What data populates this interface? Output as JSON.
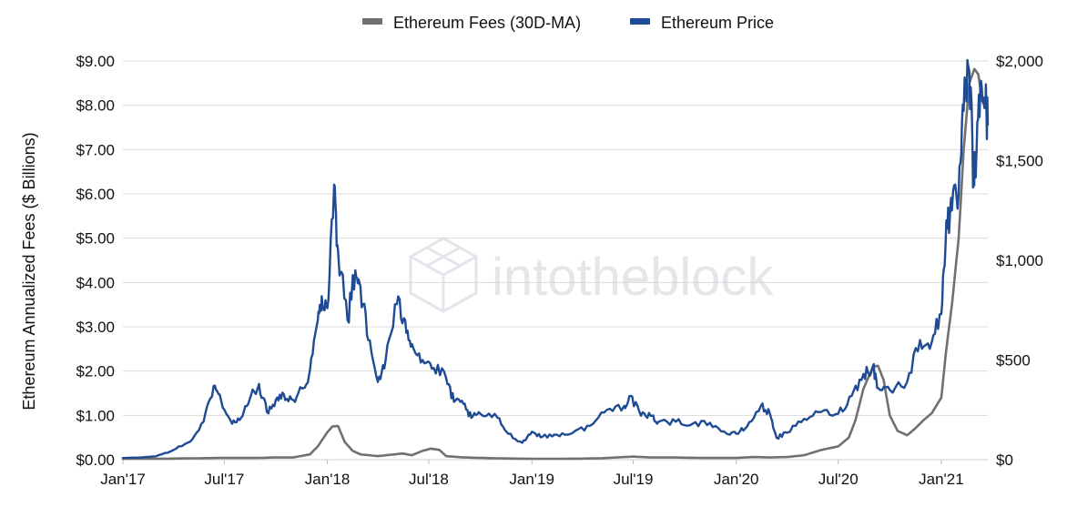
{
  "chart_data": {
    "type": "line",
    "title": "",
    "xlabel": "",
    "ylabel": "Ethereum Annualized Fees ($ Billions)",
    "y2label": "",
    "legend": {
      "placement": "top-center",
      "items": [
        {
          "label": "Ethereum Fees (30D-MA)",
          "color": "#707070"
        },
        {
          "label": "Ethereum Price",
          "color": "#1f4a94"
        }
      ]
    },
    "watermark": "intotheblock",
    "grid": "horizontal",
    "x_ticks": [
      "Jan'17",
      "Jul'17",
      "Jan'18",
      "Jul'18",
      "Jan'19",
      "Jul'19",
      "Jan'20",
      "Jul'20",
      "Jan'21"
    ],
    "y_left": {
      "ylim": [
        0,
        9
      ],
      "ticks": [
        {
          "value": 0,
          "label": "$0.00"
        },
        {
          "value": 1,
          "label": "$1.00"
        },
        {
          "value": 2,
          "label": "$2.00"
        },
        {
          "value": 3,
          "label": "$3.00"
        },
        {
          "value": 4,
          "label": "$4.00"
        },
        {
          "value": 5,
          "label": "$5.00"
        },
        {
          "value": 6,
          "label": "$6.00"
        },
        {
          "value": 7,
          "label": "$7.00"
        },
        {
          "value": 8,
          "label": "$8.00"
        },
        {
          "value": 9,
          "label": "$9.00"
        }
      ]
    },
    "y_right": {
      "ylim": [
        0,
        2000
      ],
      "ticks": [
        {
          "value": 0,
          "label": "$0"
        },
        {
          "value": 500,
          "label": "$500"
        },
        {
          "value": 1000,
          "label": "$1,000"
        },
        {
          "value": 1500,
          "label": "$1,500"
        },
        {
          "value": 2000,
          "label": "$2,000"
        }
      ]
    },
    "series": [
      {
        "name": "Ethereum Fees (30D-MA)",
        "axis": "left",
        "color": "#707070",
        "points": [
          [
            "2017-01-01",
            0.02
          ],
          [
            "2017-03-01",
            0.02
          ],
          [
            "2017-05-01",
            0.03
          ],
          [
            "2017-07-01",
            0.04
          ],
          [
            "2017-09-01",
            0.04
          ],
          [
            "2017-10-01",
            0.05
          ],
          [
            "2017-11-01",
            0.05
          ],
          [
            "2017-12-01",
            0.12
          ],
          [
            "2017-12-15",
            0.3
          ],
          [
            "2018-01-01",
            0.62
          ],
          [
            "2018-01-10",
            0.75
          ],
          [
            "2018-01-20",
            0.76
          ],
          [
            "2018-02-01",
            0.4
          ],
          [
            "2018-02-15",
            0.2
          ],
          [
            "2018-03-01",
            0.12
          ],
          [
            "2018-04-01",
            0.08
          ],
          [
            "2018-05-01",
            0.12
          ],
          [
            "2018-05-15",
            0.14
          ],
          [
            "2018-06-01",
            0.1
          ],
          [
            "2018-06-20",
            0.2
          ],
          [
            "2018-07-05",
            0.25
          ],
          [
            "2018-07-20",
            0.22
          ],
          [
            "2018-08-01",
            0.08
          ],
          [
            "2018-09-01",
            0.05
          ],
          [
            "2018-10-01",
            0.04
          ],
          [
            "2018-11-01",
            0.03
          ],
          [
            "2019-01-01",
            0.02
          ],
          [
            "2019-03-01",
            0.02
          ],
          [
            "2019-05-01",
            0.03
          ],
          [
            "2019-06-01",
            0.05
          ],
          [
            "2019-07-01",
            0.07
          ],
          [
            "2019-08-01",
            0.05
          ],
          [
            "2019-09-01",
            0.05
          ],
          [
            "2019-11-01",
            0.04
          ],
          [
            "2020-01-01",
            0.04
          ],
          [
            "2020-02-01",
            0.06
          ],
          [
            "2020-03-01",
            0.05
          ],
          [
            "2020-04-01",
            0.06
          ],
          [
            "2020-05-01",
            0.1
          ],
          [
            "2020-06-01",
            0.22
          ],
          [
            "2020-07-01",
            0.3
          ],
          [
            "2020-07-20",
            0.5
          ],
          [
            "2020-08-01",
            0.9
          ],
          [
            "2020-08-15",
            1.6
          ],
          [
            "2020-09-01",
            2.1
          ],
          [
            "2020-09-10",
            2.12
          ],
          [
            "2020-09-20",
            1.8
          ],
          [
            "2020-10-01",
            1.0
          ],
          [
            "2020-10-15",
            0.65
          ],
          [
            "2020-11-01",
            0.55
          ],
          [
            "2020-11-15",
            0.7
          ],
          [
            "2020-12-01",
            0.9
          ],
          [
            "2020-12-15",
            1.05
          ],
          [
            "2021-01-01",
            1.4
          ],
          [
            "2021-01-10",
            2.5
          ],
          [
            "2021-01-20",
            3.5
          ],
          [
            "2021-02-01",
            5.0
          ],
          [
            "2021-02-10",
            7.0
          ],
          [
            "2021-02-20",
            8.5
          ],
          [
            "2021-03-01",
            8.82
          ],
          [
            "2021-03-08",
            8.7
          ],
          [
            "2021-03-15",
            8.1
          ]
        ]
      },
      {
        "name": "Ethereum Price",
        "axis": "right",
        "color": "#1f4a94",
        "points": [
          [
            "2017-01-01",
            8
          ],
          [
            "2017-02-01",
            11
          ],
          [
            "2017-03-01",
            17
          ],
          [
            "2017-04-01",
            48
          ],
          [
            "2017-05-01",
            90
          ],
          [
            "2017-05-25",
            190
          ],
          [
            "2017-06-12",
            370
          ],
          [
            "2017-06-25",
            300
          ],
          [
            "2017-07-15",
            180
          ],
          [
            "2017-07-31",
            210
          ],
          [
            "2017-08-15",
            300
          ],
          [
            "2017-09-01",
            380
          ],
          [
            "2017-09-15",
            240
          ],
          [
            "2017-10-01",
            300
          ],
          [
            "2017-10-15",
            330
          ],
          [
            "2017-11-01",
            300
          ],
          [
            "2017-11-20",
            360
          ],
          [
            "2017-12-01",
            450
          ],
          [
            "2017-12-15",
            700
          ],
          [
            "2017-12-22",
            820
          ],
          [
            "2018-01-01",
            760
          ],
          [
            "2018-01-13",
            1380
          ],
          [
            "2018-01-20",
            1050
          ],
          [
            "2018-02-06",
            700
          ],
          [
            "2018-02-20",
            950
          ],
          [
            "2018-03-01",
            870
          ],
          [
            "2018-03-15",
            600
          ],
          [
            "2018-04-01",
            390
          ],
          [
            "2018-04-15",
            500
          ],
          [
            "2018-05-05",
            780
          ],
          [
            "2018-05-20",
            700
          ],
          [
            "2018-06-01",
            580
          ],
          [
            "2018-06-20",
            500
          ],
          [
            "2018-07-10",
            460
          ],
          [
            "2018-08-01",
            410
          ],
          [
            "2018-08-15",
            290
          ],
          [
            "2018-09-01",
            280
          ],
          [
            "2018-09-15",
            210
          ],
          [
            "2018-10-01",
            230
          ],
          [
            "2018-11-01",
            210
          ],
          [
            "2018-11-20",
            130
          ],
          [
            "2018-12-15",
            85
          ],
          [
            "2019-01-01",
            140
          ],
          [
            "2019-01-20",
            115
          ],
          [
            "2019-02-15",
            125
          ],
          [
            "2019-03-15",
            135
          ],
          [
            "2019-04-15",
            170
          ],
          [
            "2019-05-15",
            250
          ],
          [
            "2019-06-15",
            270
          ],
          [
            "2019-06-26",
            320
          ],
          [
            "2019-07-15",
            220
          ],
          [
            "2019-08-01",
            220
          ],
          [
            "2019-08-15",
            190
          ],
          [
            "2019-09-15",
            190
          ],
          [
            "2019-10-15",
            180
          ],
          [
            "2019-11-15",
            185
          ],
          [
            "2019-12-15",
            130
          ],
          [
            "2020-01-01",
            130
          ],
          [
            "2020-01-20",
            165
          ],
          [
            "2020-02-14",
            270
          ],
          [
            "2020-03-01",
            230
          ],
          [
            "2020-03-13",
            110
          ],
          [
            "2020-04-01",
            135
          ],
          [
            "2020-05-01",
            205
          ],
          [
            "2020-06-01",
            240
          ],
          [
            "2020-07-01",
            230
          ],
          [
            "2020-07-25",
            320
          ],
          [
            "2020-08-15",
            430
          ],
          [
            "2020-09-01",
            470
          ],
          [
            "2020-09-10",
            360
          ],
          [
            "2020-10-01",
            350
          ],
          [
            "2020-11-01",
            390
          ],
          [
            "2020-11-24",
            600
          ],
          [
            "2020-12-15",
            590
          ],
          [
            "2021-01-01",
            730
          ],
          [
            "2021-01-10",
            1200
          ],
          [
            "2021-01-20",
            1250
          ],
          [
            "2021-02-01",
            1330
          ],
          [
            "2021-02-10",
            1750
          ],
          [
            "2021-02-20",
            1950
          ],
          [
            "2021-02-28",
            1380
          ],
          [
            "2021-03-05",
            1550
          ],
          [
            "2021-03-13",
            1900
          ],
          [
            "2021-03-20",
            1800
          ],
          [
            "2021-03-25",
            1680
          ]
        ]
      }
    ]
  }
}
